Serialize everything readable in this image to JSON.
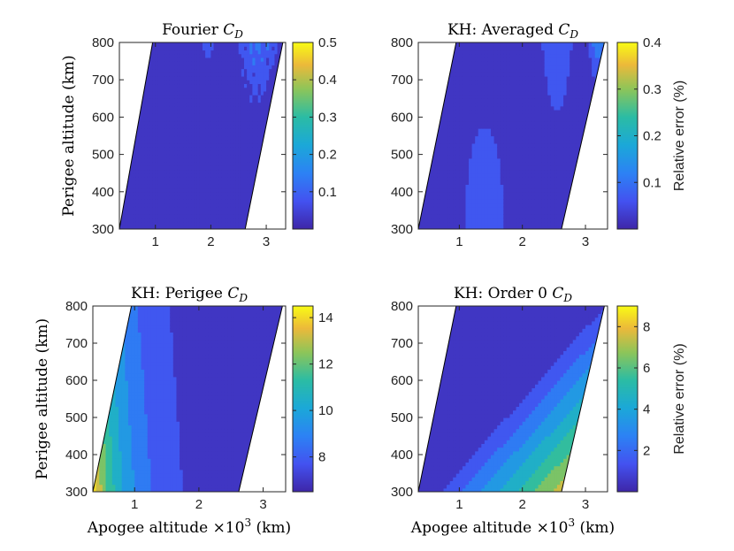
{
  "chart_data": [
    {
      "type": "contour",
      "title": "Fourier",
      "title_sym": "C",
      "title_sub": "D",
      "xlabel": "",
      "ylabel": "Perigee altitude (km)",
      "xlim": [
        0.35,
        3.35
      ],
      "ylim": [
        300,
        800
      ],
      "xticks": [
        1,
        2,
        3
      ],
      "yticks": [
        300,
        400,
        500,
        600,
        700,
        800
      ],
      "colorbar": {
        "ticks": [
          0.1,
          0.2,
          0.3,
          0.4,
          0.5
        ],
        "labels": [
          "0.1",
          "0.2",
          "0.3",
          "0.4",
          "0.5"
        ],
        "range": [
          0,
          0.5
        ],
        "label": ""
      },
      "field": "fourier"
    },
    {
      "type": "contour",
      "title": "KH: Averaged",
      "title_sym": "C",
      "title_sub": "D",
      "xlabel": "",
      "ylabel": "",
      "xlim": [
        0.35,
        3.35
      ],
      "ylim": [
        300,
        800
      ],
      "xticks": [
        1,
        2,
        3
      ],
      "yticks": [
        300,
        400,
        500,
        600,
        700,
        800
      ],
      "colorbar": {
        "ticks": [
          0.1,
          0.2,
          0.3,
          0.4
        ],
        "labels": [
          "0.1",
          "0.2",
          "0.3",
          "0.4"
        ],
        "range": [
          0,
          0.4
        ],
        "label": "Relative error (%)"
      },
      "field": "averaged"
    },
    {
      "type": "contour",
      "title": "KH: Perigee",
      "title_sym": "C",
      "title_sub": "D",
      "xlabel": "Apogee altitude ×10",
      "xlabel_sup": "3",
      "xlabel_unit": "(km)",
      "ylabel": "Perigee altitude (km)",
      "xlim": [
        0.35,
        3.35
      ],
      "ylim": [
        300,
        800
      ],
      "xticks": [
        1,
        2,
        3
      ],
      "yticks": [
        300,
        400,
        500,
        600,
        700,
        800
      ],
      "colorbar": {
        "ticks": [
          8,
          10,
          12,
          14
        ],
        "labels": [
          "8",
          "10",
          "12",
          "14"
        ],
        "range": [
          6.5,
          14.5
        ],
        "label": ""
      },
      "field": "perigee"
    },
    {
      "type": "contour",
      "title": "KH: Order 0",
      "title_sym": "C",
      "title_sub": "D",
      "xlabel": "Apogee altitude ×10",
      "xlabel_sup": "3",
      "xlabel_unit": "(km)",
      "ylabel": "",
      "xlim": [
        0.35,
        3.35
      ],
      "ylim": [
        300,
        800
      ],
      "xticks": [
        1,
        2,
        3
      ],
      "yticks": [
        300,
        400,
        500,
        600,
        700,
        800
      ],
      "colorbar": {
        "ticks": [
          2,
          4,
          6,
          8
        ],
        "labels": [
          "2",
          "4",
          "6",
          "8"
        ],
        "range": [
          0,
          9
        ],
        "label": "Relative error (%)"
      },
      "field": "order0"
    }
  ]
}
